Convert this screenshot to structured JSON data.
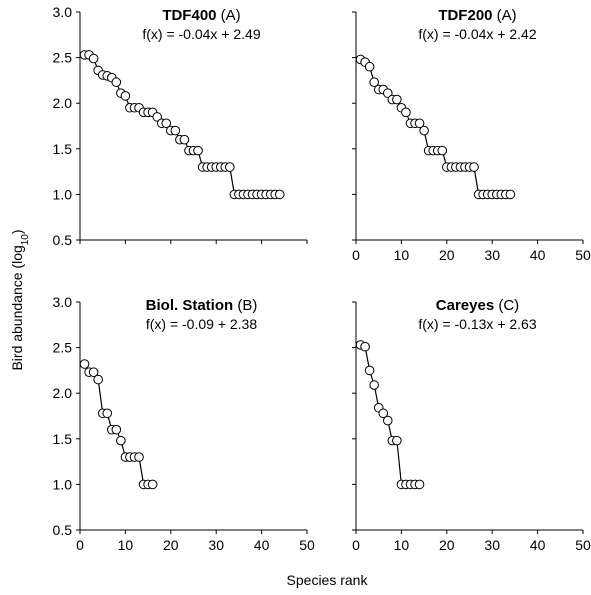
{
  "figure": {
    "ylabel": "Bird abundance (log",
    "ylabel_sub": "10",
    "ylabel_close": ")",
    "xlabel": "Species rank"
  },
  "chart_data": [
    {
      "type": "line",
      "title": "TDF400",
      "title_suffix": " (A)",
      "equation": "f(x) = -0.04x + 2.49",
      "xlim": [
        0,
        50
      ],
      "ylim": [
        0.5,
        3.0
      ],
      "xticks": [
        0,
        10,
        20,
        30,
        40,
        50
      ],
      "yticks": [
        0.5,
        1.0,
        1.5,
        2.0,
        2.5,
        3.0
      ],
      "show_xticks": false,
      "show_yticks": true,
      "x": [
        1,
        2,
        3,
        4,
        5,
        6,
        7,
        8,
        9,
        10,
        11,
        12,
        13,
        14,
        15,
        16,
        17,
        18,
        19,
        20,
        21,
        22,
        23,
        24,
        25,
        26,
        27,
        28,
        29,
        30,
        31,
        32,
        33,
        34,
        35,
        36,
        37,
        38,
        39,
        40,
        41,
        42,
        43,
        44
      ],
      "y": [
        2.53,
        2.53,
        2.49,
        2.36,
        2.31,
        2.3,
        2.28,
        2.23,
        2.11,
        2.08,
        1.95,
        1.95,
        1.95,
        1.9,
        1.9,
        1.9,
        1.85,
        1.78,
        1.78,
        1.7,
        1.7,
        1.6,
        1.6,
        1.48,
        1.48,
        1.48,
        1.3,
        1.3,
        1.3,
        1.3,
        1.3,
        1.3,
        1.3,
        1.0,
        1.0,
        1.0,
        1.0,
        1.0,
        1.0,
        1.0,
        1.0,
        1.0,
        1.0,
        1.0
      ]
    },
    {
      "type": "line",
      "title": "TDF200",
      "title_suffix": " (A)",
      "equation": "f(x) = -0.04x + 2.42",
      "xlim": [
        0,
        50
      ],
      "ylim": [
        0.5,
        3.0
      ],
      "xticks": [
        0,
        10,
        20,
        30,
        40,
        50
      ],
      "yticks": [
        0.5,
        1.0,
        1.5,
        2.0,
        2.5,
        3.0
      ],
      "show_xticks": true,
      "show_yticks": false,
      "x": [
        1,
        2,
        3,
        4,
        5,
        6,
        7,
        8,
        9,
        10,
        11,
        12,
        13,
        14,
        15,
        16,
        17,
        18,
        19,
        20,
        21,
        22,
        23,
        24,
        25,
        26,
        27,
        28,
        29,
        30,
        31,
        32,
        33,
        34
      ],
      "y": [
        2.48,
        2.45,
        2.4,
        2.23,
        2.15,
        2.15,
        2.11,
        2.04,
        2.04,
        1.95,
        1.9,
        1.78,
        1.78,
        1.78,
        1.7,
        1.48,
        1.48,
        1.48,
        1.48,
        1.3,
        1.3,
        1.3,
        1.3,
        1.3,
        1.3,
        1.3,
        1.0,
        1.0,
        1.0,
        1.0,
        1.0,
        1.0,
        1.0,
        1.0
      ]
    },
    {
      "type": "line",
      "title": "Biol. Station",
      "title_suffix": " (B)",
      "equation": "f(x) = -0.09 + 2.38",
      "xlim": [
        0,
        50
      ],
      "ylim": [
        0.5,
        3.0
      ],
      "xticks": [
        0,
        10,
        20,
        30,
        40,
        50
      ],
      "yticks": [
        0.5,
        1.0,
        1.5,
        2.0,
        2.5,
        3.0
      ],
      "show_xticks": true,
      "show_yticks": true,
      "x": [
        1,
        2,
        3,
        4,
        5,
        6,
        7,
        8,
        9,
        10,
        11,
        12,
        13,
        14,
        15,
        16
      ],
      "y": [
        2.32,
        2.23,
        2.23,
        2.15,
        1.78,
        1.78,
        1.6,
        1.6,
        1.48,
        1.3,
        1.3,
        1.3,
        1.3,
        1.0,
        1.0,
        1.0
      ]
    },
    {
      "type": "line",
      "title": "Careyes",
      "title_suffix": " (C)",
      "equation": "f(x) = -0.13x + 2.63",
      "xlim": [
        0,
        50
      ],
      "ylim": [
        0.5,
        3.0
      ],
      "xticks": [
        0,
        10,
        20,
        30,
        40,
        50
      ],
      "yticks": [
        0.5,
        1.0,
        1.5,
        2.0,
        2.5,
        3.0
      ],
      "show_xticks": true,
      "show_yticks": false,
      "x": [
        1,
        2,
        3,
        4,
        5,
        6,
        7,
        8,
        9,
        10,
        11,
        12,
        13,
        14
      ],
      "y": [
        2.53,
        2.51,
        2.25,
        2.09,
        1.84,
        1.78,
        1.7,
        1.48,
        1.48,
        1.0,
        1.0,
        1.0,
        1.0,
        1.0
      ]
    }
  ]
}
